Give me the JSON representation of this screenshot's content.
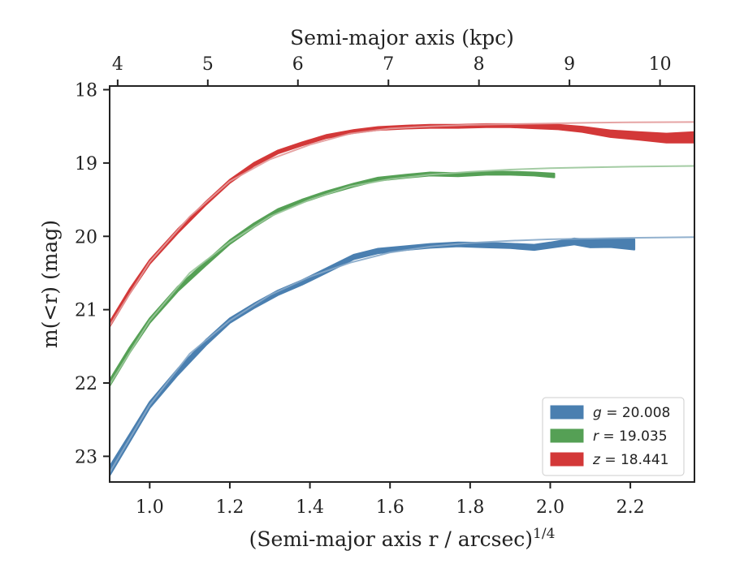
{
  "chart_data": {
    "type": "line",
    "title": "",
    "xlabel": "(Semi-major axis r / arcsec)",
    "xlabel_superscript": "1/4",
    "ylabel": "m(<r) (mag)",
    "top_xlabel": "Semi-major axis (kpc)",
    "xlim": [
      0.9,
      2.36
    ],
    "ylim": [
      23.35,
      17.95
    ],
    "y_inverted": true,
    "x_ticks": [
      "1.0",
      "1.2",
      "1.4",
      "1.6",
      "1.8",
      "2.0",
      "2.2"
    ],
    "y_ticks": [
      "18",
      "19",
      "20",
      "21",
      "22",
      "23"
    ],
    "top_ticks": [
      "4",
      "5",
      "6",
      "7",
      "8",
      "9",
      "10"
    ],
    "top_axis_kpc_at_x": {
      "4": 0.92,
      "5": 1.145,
      "6": 1.37,
      "7": 1.596,
      "8": 1.822,
      "9": 2.048,
      "10": 2.274
    },
    "grid": false,
    "legend_position": "lower-right",
    "legend": [
      {
        "label": "g = 20.008",
        "var": "g",
        "value": "20.008",
        "color": "#4a7fb0"
      },
      {
        "label": "r = 19.035",
        "var": "r",
        "value": "19.035",
        "color": "#55a055"
      },
      {
        "label": "z = 18.441",
        "var": "z",
        "value": "18.441",
        "color": "#d33838"
      }
    ],
    "series": [
      {
        "name": "g",
        "color": "#4a7fb0",
        "model_color": "#86a9c9",
        "x": [
          0.9,
          0.95,
          1.0,
          1.07,
          1.14,
          1.2,
          1.26,
          1.32,
          1.38,
          1.44,
          1.51,
          1.57,
          1.64,
          1.7,
          1.77,
          1.84,
          1.9,
          1.96,
          2.0,
          2.06,
          2.1,
          2.15,
          2.21
        ],
        "y": [
          23.2,
          22.75,
          22.3,
          21.85,
          21.45,
          21.15,
          20.95,
          20.77,
          20.63,
          20.47,
          20.28,
          20.2,
          20.16,
          20.13,
          20.11,
          20.12,
          20.13,
          20.15,
          20.12,
          20.07,
          20.1,
          20.09,
          20.11
        ],
        "band_halfwidth": [
          0.06,
          0.05,
          0.04,
          0.04,
          0.035,
          0.03,
          0.03,
          0.03,
          0.03,
          0.03,
          0.03,
          0.03,
          0.025,
          0.025,
          0.025,
          0.03,
          0.03,
          0.035,
          0.035,
          0.04,
          0.05,
          0.055,
          0.07
        ],
        "model_x": [
          0.9,
          1.0,
          1.1,
          1.2,
          1.3,
          1.4,
          1.5,
          1.6,
          1.7,
          1.8,
          1.9,
          2.0,
          2.1,
          2.2,
          2.36
        ],
        "model_y": [
          23.22,
          22.3,
          21.6,
          21.15,
          20.8,
          20.55,
          20.36,
          20.22,
          20.14,
          20.09,
          20.06,
          20.04,
          20.03,
          20.02,
          20.01
        ]
      },
      {
        "name": "r",
        "color": "#55a055",
        "model_color": "#9ac79a",
        "x": [
          0.9,
          0.95,
          1.0,
          1.07,
          1.14,
          1.2,
          1.26,
          1.32,
          1.38,
          1.44,
          1.51,
          1.57,
          1.64,
          1.7,
          1.77,
          1.84,
          1.9,
          1.96,
          2.01
        ],
        "y": [
          22.0,
          21.55,
          21.15,
          20.72,
          20.37,
          20.08,
          19.85,
          19.65,
          19.52,
          19.41,
          19.3,
          19.22,
          19.18,
          19.15,
          19.16,
          19.14,
          19.14,
          19.15,
          19.17
        ],
        "band_halfwidth": [
          0.04,
          0.035,
          0.03,
          0.03,
          0.025,
          0.025,
          0.025,
          0.02,
          0.02,
          0.02,
          0.02,
          0.02,
          0.02,
          0.02,
          0.02,
          0.02,
          0.02,
          0.02,
          0.025
        ],
        "model_x": [
          0.9,
          1.0,
          1.1,
          1.2,
          1.3,
          1.4,
          1.5,
          1.6,
          1.7,
          1.8,
          1.9,
          2.0,
          2.1,
          2.2,
          2.36
        ],
        "model_y": [
          22.02,
          21.15,
          20.5,
          20.08,
          19.73,
          19.5,
          19.32,
          19.22,
          19.16,
          19.12,
          19.09,
          19.07,
          19.06,
          19.05,
          19.04
        ]
      },
      {
        "name": "z",
        "color": "#d33838",
        "model_color": "#e39a9a",
        "x": [
          0.9,
          0.95,
          1.0,
          1.07,
          1.14,
          1.2,
          1.26,
          1.32,
          1.38,
          1.44,
          1.51,
          1.57,
          1.64,
          1.7,
          1.77,
          1.84,
          1.9,
          1.96,
          2.02,
          2.08,
          2.15,
          2.22,
          2.29,
          2.36
        ],
        "y": [
          21.2,
          20.75,
          20.35,
          19.93,
          19.55,
          19.25,
          19.02,
          18.85,
          18.74,
          18.64,
          18.57,
          18.53,
          18.51,
          18.5,
          18.5,
          18.49,
          18.49,
          18.5,
          18.51,
          18.54,
          18.6,
          18.63,
          18.66,
          18.65
        ],
        "band_halfwidth": [
          0.03,
          0.03,
          0.025,
          0.025,
          0.02,
          0.02,
          0.02,
          0.02,
          0.02,
          0.02,
          0.02,
          0.02,
          0.02,
          0.02,
          0.02,
          0.02,
          0.02,
          0.025,
          0.03,
          0.035,
          0.045,
          0.05,
          0.06,
          0.07
        ],
        "model_x": [
          0.9,
          1.0,
          1.1,
          1.2,
          1.3,
          1.4,
          1.5,
          1.6,
          1.7,
          1.8,
          1.9,
          2.0,
          2.1,
          2.2,
          2.36
        ],
        "model_y": [
          21.22,
          20.35,
          19.73,
          19.25,
          18.95,
          18.75,
          18.6,
          18.53,
          18.5,
          18.48,
          18.47,
          18.46,
          18.45,
          18.445,
          18.441
        ]
      }
    ]
  }
}
